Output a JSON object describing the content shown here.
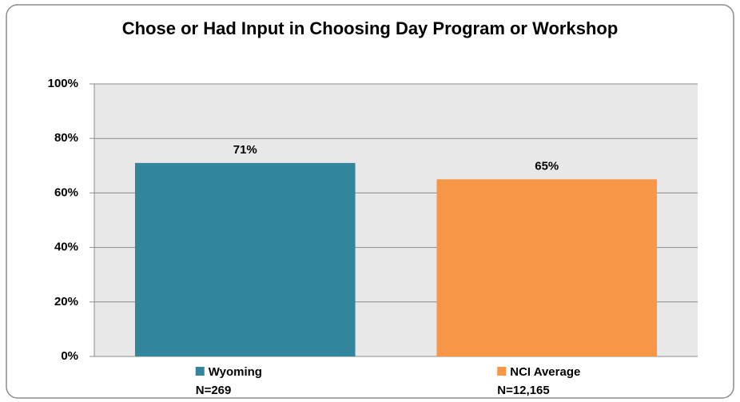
{
  "chart_data": {
    "type": "bar",
    "title": "Chose or Had Input in Choosing Day Program or Workshop",
    "categories": [
      "Wyoming",
      "NCI Average"
    ],
    "sample_sizes": [
      "N=269",
      "N=12,165"
    ],
    "values": [
      71,
      65
    ],
    "value_labels": [
      "71%",
      "65%"
    ],
    "colors": [
      "#31859c",
      "#f79646"
    ],
    "ylim": [
      0,
      100
    ],
    "yticks": [
      {
        "value": 0,
        "label": "0%"
      },
      {
        "value": 20,
        "label": "20%"
      },
      {
        "value": 40,
        "label": "40%"
      },
      {
        "value": 60,
        "label": "60%"
      },
      {
        "value": 80,
        "label": "80%"
      },
      {
        "value": 100,
        "label": "100%"
      }
    ],
    "grid": true
  }
}
